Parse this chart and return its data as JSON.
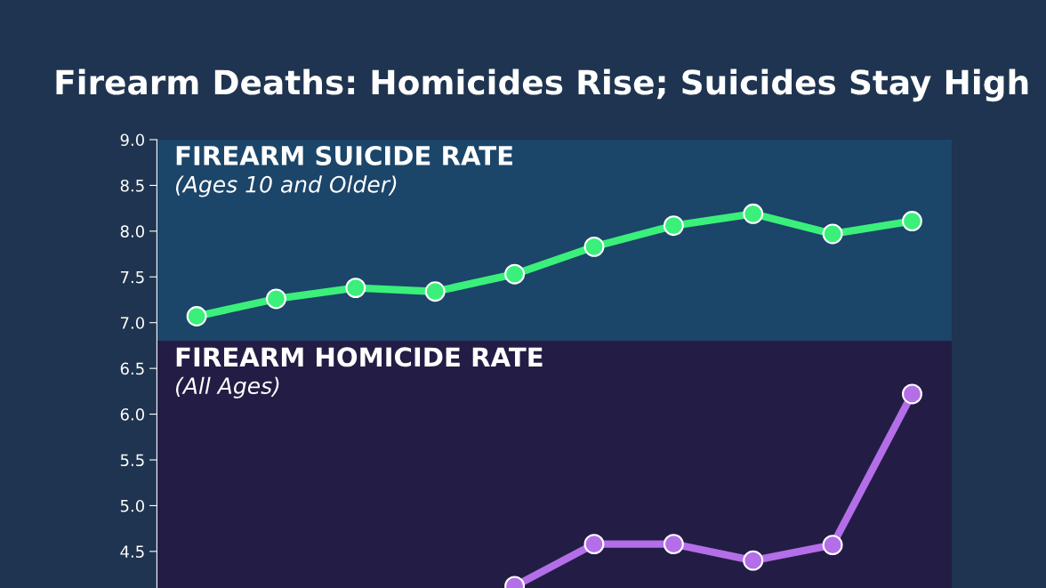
{
  "chart_data": {
    "type": "line",
    "title": "Firearm Deaths: Homicides Rise; Suicides Stay High",
    "categories": [
      null,
      null,
      null,
      null,
      null,
      null,
      null,
      null,
      null,
      null
    ],
    "series": [
      {
        "color": "#3af07a",
        "values": [
          7.07,
          7.26,
          7.38,
          7.34,
          7.53,
          7.83,
          8.06,
          8.19,
          7.97,
          8.11
        ]
      },
      {
        "color": "#b46ee8",
        "values": [
          null,
          null,
          null,
          null,
          4.12,
          4.58,
          4.58,
          4.4,
          4.57,
          6.22
        ]
      }
    ],
    "ylim": [
      4.1,
      9.0
    ],
    "yticks": [
      4.5,
      {
        "value": 5,
        "label": "5.0"
      },
      5.5,
      {
        "value": 6,
        "label": "6.0"
      },
      6.5,
      {
        "value": 7,
        "label": "7.0"
      },
      7.5,
      {
        "value": 8,
        "label": "8.0"
      },
      8.5,
      {
        "value": 9,
        "label": "9.0"
      }
    ],
    "bands": [
      {
        "axis": "y",
        "from": 6.8,
        "to": 9.0,
        "label": "FIREARM SUICIDE RATE",
        "color": "#1b4569"
      },
      {
        "axis": "y",
        "from": 4.1,
        "to": 6.8,
        "label": "FIREARM HOMICIDE RATE",
        "color": "#231d45"
      }
    ],
    "annotations": [
      "(Ages 10 and Older)",
      "(All Ages)"
    ],
    "marker": "circle",
    "grid": false,
    "legend": false
  }
}
